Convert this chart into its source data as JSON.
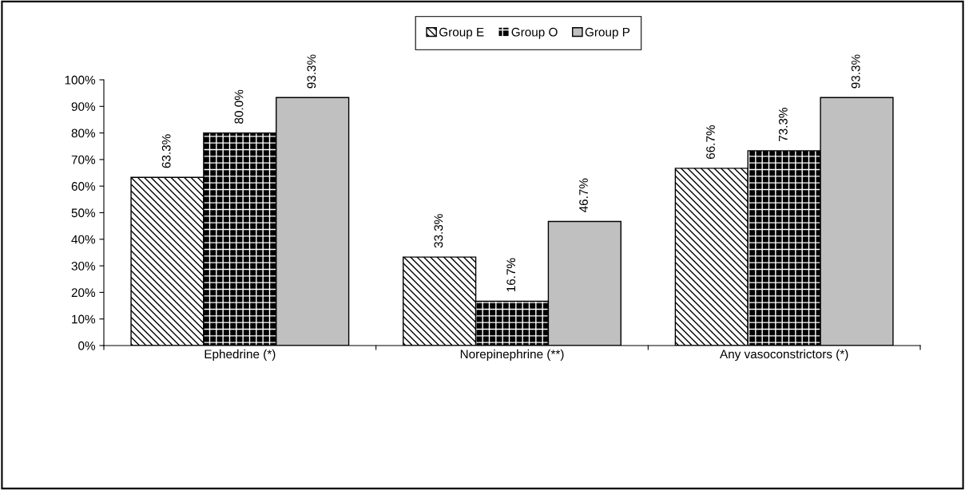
{
  "chart_data": {
    "type": "bar",
    "categories": [
      "Ephedrine (*)",
      "Norepinephrine (**)",
      "Any vasoconstrictors (*)"
    ],
    "series": [
      {
        "name": "Group E",
        "color": "#000000",
        "values": [
          63.3,
          33.3,
          66.7
        ],
        "value_labels": [
          "63.3%",
          "33.3%",
          "66.7%"
        ]
      },
      {
        "name": "Group O",
        "color": "#000000",
        "values": [
          80.0,
          16.7,
          73.3
        ],
        "value_labels": [
          "80.0%",
          "16.7%",
          "73.3%"
        ]
      },
      {
        "name": "Group P",
        "color": "#c0c0c0",
        "values": [
          93.3,
          46.7,
          93.3
        ],
        "value_labels": [
          "93.3%",
          "46.7%",
          "93.3%"
        ]
      }
    ],
    "ylim": [
      0,
      100
    ],
    "yticks": [
      {
        "value": 0,
        "label": "0%"
      },
      {
        "value": 10,
        "label": "10%"
      },
      {
        "value": 20,
        "label": "20%"
      },
      {
        "value": 30,
        "label": "30%"
      },
      {
        "value": 40,
        "label": "40%"
      },
      {
        "value": 50,
        "label": "50%"
      },
      {
        "value": 60,
        "label": "60%"
      },
      {
        "value": 70,
        "label": "70%"
      },
      {
        "value": 80,
        "label": "80%"
      },
      {
        "value": 90,
        "label": "90%"
      },
      {
        "value": 100,
        "label": "100%"
      }
    ],
    "grid": false,
    "legend": "top"
  }
}
